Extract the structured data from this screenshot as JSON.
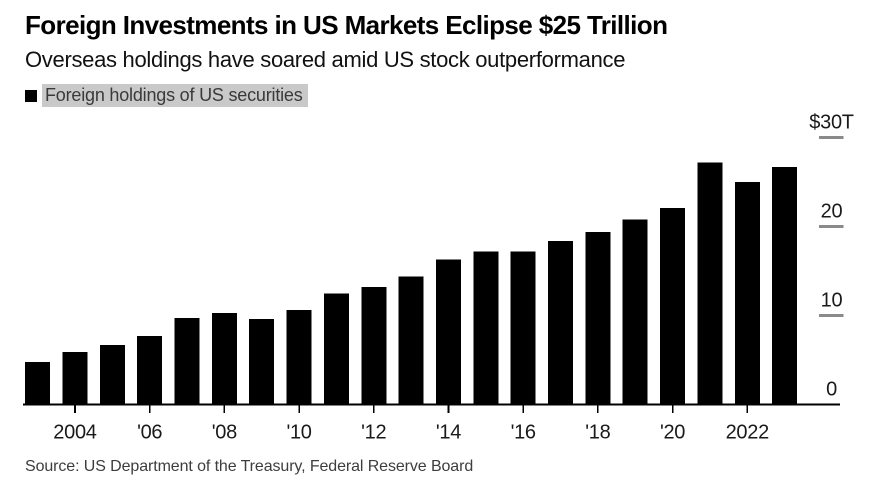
{
  "header": {
    "title": "Foreign Investments in US Markets Eclipse $25 Trillion",
    "subtitle": "Overseas holdings have soared amid US stock outperformance"
  },
  "legend": {
    "marker": "black-square",
    "label": "Foreign holdings of US securities"
  },
  "chart_data": {
    "type": "bar",
    "title": "Foreign Investments in US Markets Eclipse $25 Trillion",
    "subtitle": "Overseas holdings have soared amid US stock outperformance",
    "unit": "USD trillions",
    "categories": [
      2003,
      2004,
      2005,
      2006,
      2007,
      2008,
      2009,
      2010,
      2011,
      2012,
      2013,
      2014,
      2015,
      2016,
      2017,
      2018,
      2019,
      2020,
      2021,
      2022,
      2023
    ],
    "series": [
      {
        "name": "Foreign holdings of US securities",
        "values": [
          4.8,
          5.9,
          6.7,
          7.7,
          9.7,
          10.3,
          9.6,
          10.6,
          12.5,
          13.2,
          14.4,
          16.3,
          17.2,
          17.2,
          18.4,
          19.4,
          20.8,
          22.1,
          27.2,
          25.0,
          26.7
        ]
      }
    ],
    "ylim": [
      0,
      30
    ],
    "y_axis": {
      "side": "right",
      "tick_labels": [
        "$30T",
        "20",
        "10",
        "0"
      ],
      "tick_values": [
        30,
        20,
        10,
        0
      ]
    },
    "x_axis": {
      "tick_labels": [
        "2004",
        "'06",
        "'08",
        "'10",
        "'12",
        "'14",
        "'16",
        "'18",
        "'20",
        "2022"
      ],
      "tick_values": [
        2004,
        2006,
        2008,
        2010,
        2012,
        2014,
        2016,
        2018,
        2020,
        2022
      ]
    },
    "grid": false,
    "legend_position": "top-left"
  },
  "footer": {
    "source": "Source: US Department of the Treasury, Federal Reserve Board"
  },
  "colors": {
    "background": "#ffffff",
    "bar": "#000000",
    "axis": "#000000",
    "tick_dash": "#8a8a8a",
    "legend_highlight": "#c9c9c9",
    "text_primary": "#000000",
    "text_secondary": "#3d3d3d"
  }
}
